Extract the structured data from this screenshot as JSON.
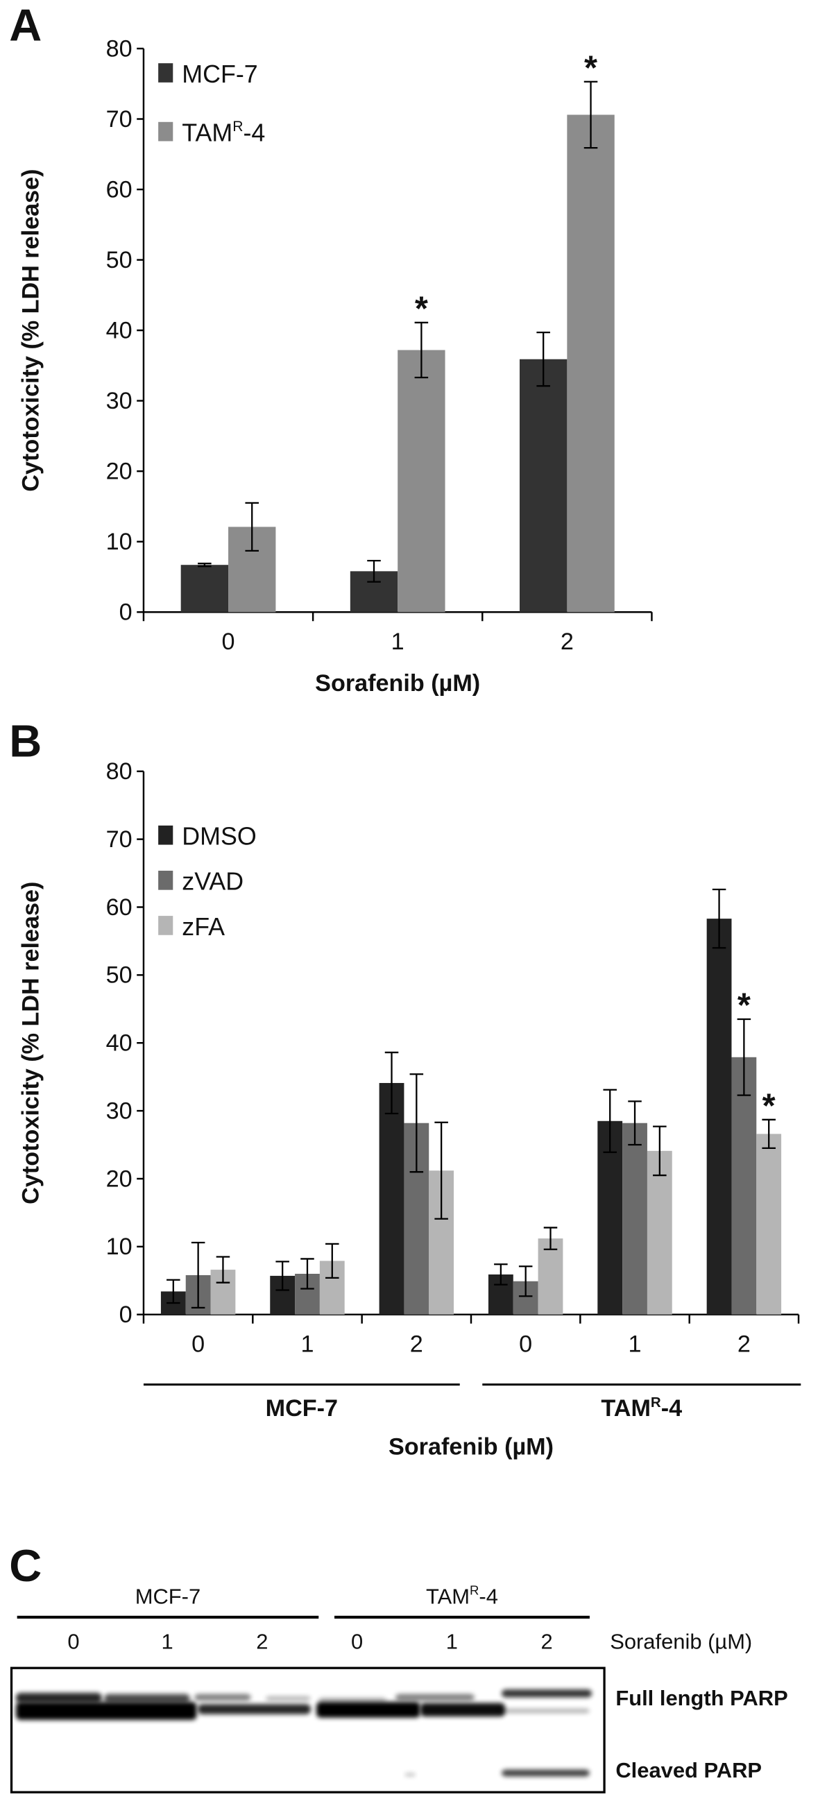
{
  "chart_data": [
    {
      "panel": "A",
      "type": "bar",
      "title": "",
      "xlabel": "Sorafenib (µM)",
      "ylabel": "Cytotoxicity (% LDH release)",
      "ylim": [
        0,
        80
      ],
      "yticks": [
        0,
        10,
        20,
        30,
        40,
        50,
        60,
        70,
        80
      ],
      "categories": [
        "0",
        "1",
        "2"
      ],
      "legend_position": "top-left",
      "series": [
        {
          "name": "MCF-7",
          "color": "#333333",
          "values": [
            6.7,
            5.8,
            35.9
          ],
          "errors": [
            0.2,
            1.5,
            3.8
          ],
          "significant": [
            false,
            false,
            false
          ]
        },
        {
          "name": "TAM",
          "name_sup": "R",
          "name_suffix": "-4",
          "color": "#8c8c8c",
          "values": [
            12.1,
            37.2,
            70.6
          ],
          "errors": [
            3.4,
            3.9,
            4.7
          ],
          "significant": [
            false,
            true,
            true
          ]
        }
      ],
      "significance_marker": "*"
    },
    {
      "panel": "B",
      "type": "bar",
      "title": "",
      "xlabel": "Sorafenib (µM)",
      "ylabel": "Cytotoxicity (% LDH release)",
      "ylim": [
        0,
        80
      ],
      "yticks": [
        0,
        10,
        20,
        30,
        40,
        50,
        60,
        70,
        80
      ],
      "categories": [
        "0",
        "1",
        "2",
        "0",
        "1",
        "2"
      ],
      "groups": [
        {
          "name": "MCF-7",
          "sup": "",
          "suffix": ""
        },
        {
          "name": "TAM",
          "sup": "R",
          "suffix": "-4"
        }
      ],
      "legend_position": "top-left",
      "series": [
        {
          "name": "DMSO",
          "color": "#222222",
          "values": [
            3.4,
            5.7,
            34.1,
            5.9,
            28.5,
            58.3
          ],
          "errors": [
            1.7,
            2.1,
            4.5,
            1.5,
            4.6,
            4.3
          ],
          "significant": [
            false,
            false,
            false,
            false,
            false,
            false
          ]
        },
        {
          "name": "zVAD",
          "color": "#6b6b6b",
          "values": [
            5.8,
            6.0,
            28.2,
            4.9,
            28.2,
            37.9
          ],
          "errors": [
            4.8,
            2.2,
            7.2,
            2.2,
            3.2,
            5.6
          ],
          "significant": [
            false,
            false,
            false,
            false,
            false,
            true
          ]
        },
        {
          "name": "zFA",
          "color": "#b5b5b5",
          "values": [
            6.6,
            7.9,
            21.2,
            11.2,
            24.1,
            26.6
          ],
          "errors": [
            1.9,
            2.5,
            7.1,
            1.6,
            3.6,
            2.1
          ],
          "significant": [
            false,
            false,
            false,
            false,
            false,
            true
          ]
        }
      ],
      "significance_marker": "*"
    }
  ],
  "panel_c": {
    "label": "C",
    "groups": [
      {
        "name": "MCF-7",
        "sup": "",
        "suffix": ""
      },
      {
        "name": "TAM",
        "sup": "R",
        "suffix": "-4"
      }
    ],
    "lanes": [
      "0",
      "1",
      "2",
      "0",
      "1",
      "2"
    ],
    "treatment_label": "Sorafenib (µM)",
    "band_labels": [
      "Full length PARP",
      "Cleaved PARP"
    ]
  },
  "panel_labels": [
    "A",
    "B",
    "C"
  ]
}
